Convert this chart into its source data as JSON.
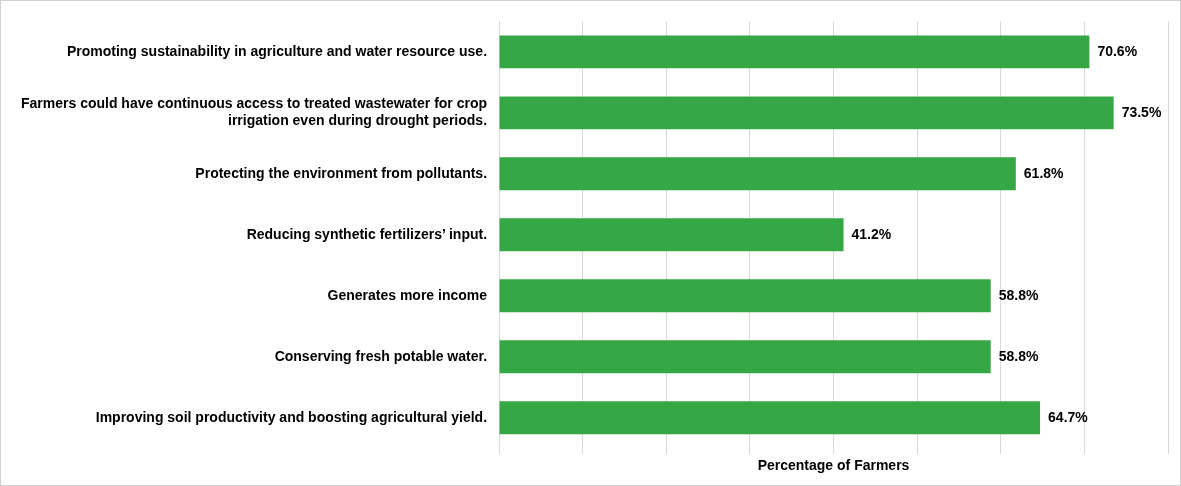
{
  "chart_data": {
    "type": "bar",
    "orientation": "horizontal",
    "xlabel": "Percentage of Farmers",
    "categories": [
      "Promoting sustainability in agriculture and water resource use.",
      "Farmers could have continuous access to treated wastewater for crop irrigation even during drought periods.",
      "Protecting the environment from pollutants.",
      "Reducing synthetic fertilizers’ input.",
      "Generates more income",
      "Conserving fresh potable water.",
      "Improving soil productivity and boosting agricultural yield."
    ],
    "values": [
      70.6,
      73.5,
      61.8,
      41.2,
      58.8,
      58.8,
      64.7
    ],
    "value_labels": [
      "70.6%",
      "73.5%",
      "61.8%",
      "41.2%",
      "58.8%",
      "58.8%",
      "64.7%"
    ],
    "color": "#35a845",
    "xlim": [
      0,
      80
    ],
    "xticks": [
      {
        "value": 0,
        "label": null
      },
      {
        "value": 10,
        "label": null
      },
      {
        "value": 20,
        "label": null
      },
      {
        "value": 30,
        "label": null
      },
      {
        "value": 40,
        "label": null
      },
      {
        "value": 50,
        "label": null
      },
      {
        "value": 60,
        "label": null
      },
      {
        "value": 70,
        "label": null
      },
      {
        "value": 80,
        "label": null
      }
    ],
    "grid": "x",
    "tick_labels": "y",
    "legend": false
  }
}
